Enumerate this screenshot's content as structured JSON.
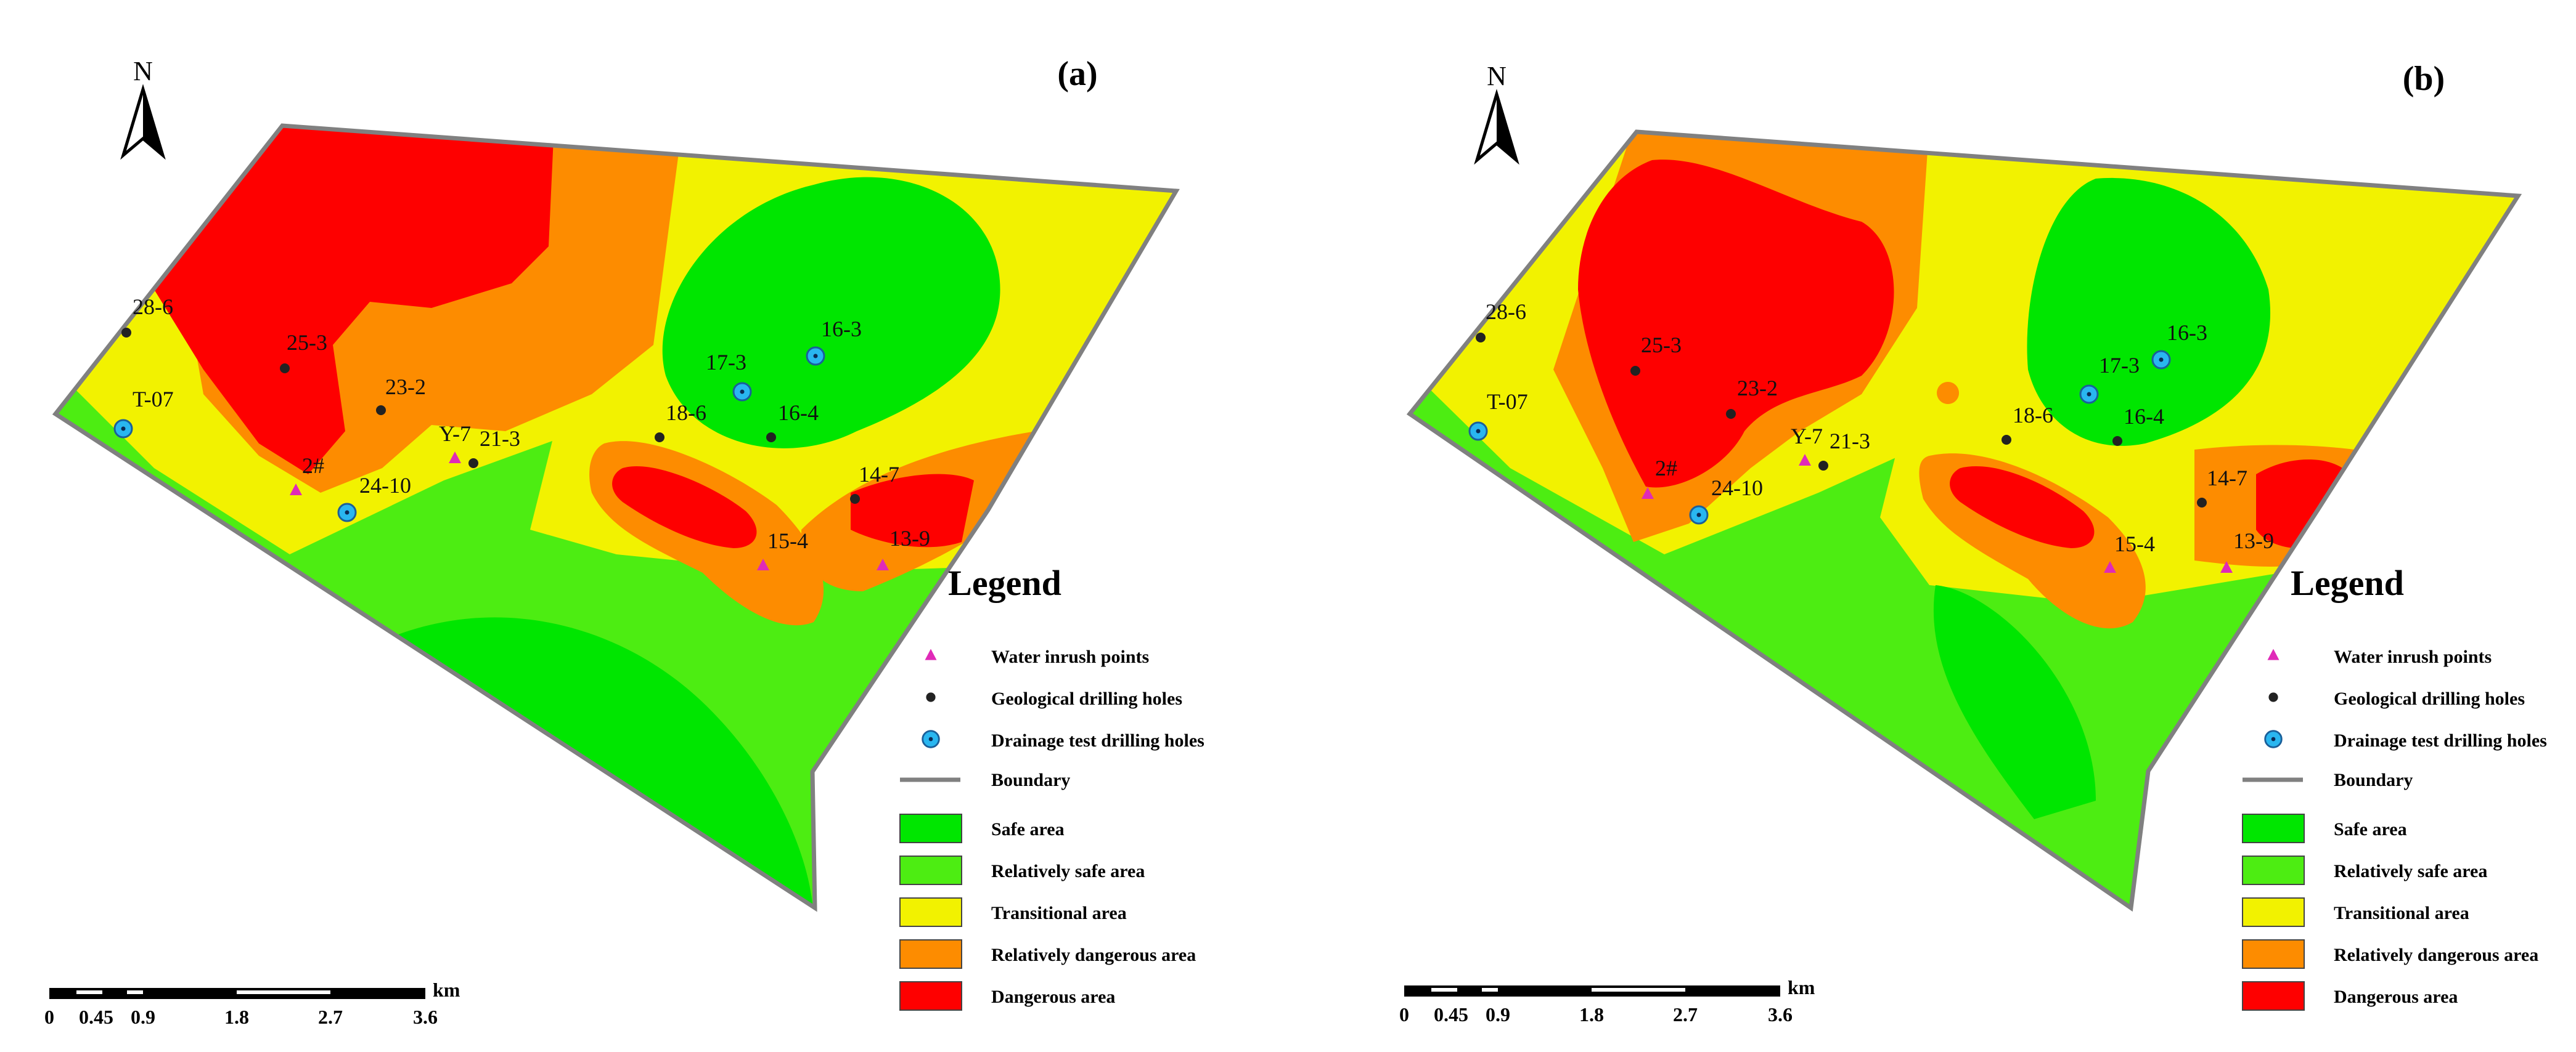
{
  "colors": {
    "safe": "#00e600",
    "relatively_safe": "#4ded12",
    "transitional": "#f2f200",
    "relatively_dangerous": "#fd8c00",
    "dangerous": "#fe0000",
    "water_inrush": "#e02ab8",
    "geological": "#222222",
    "drainage": "#29b6f0",
    "boundary": "#808080"
  },
  "north_label": "N",
  "panels": [
    {
      "label": "(a)",
      "points": [
        {
          "name": "28-6",
          "type": "geological"
        },
        {
          "name": "25-3",
          "type": "geological"
        },
        {
          "name": "23-2",
          "type": "geological"
        },
        {
          "name": "T-07",
          "type": "drainage"
        },
        {
          "name": "2#",
          "type": "water_inrush"
        },
        {
          "name": "24-10",
          "type": "drainage"
        },
        {
          "name": "Y-7",
          "type": "water_inrush"
        },
        {
          "name": "21-3",
          "type": "geological"
        },
        {
          "name": "18-6",
          "type": "geological"
        },
        {
          "name": "17-3",
          "type": "drainage"
        },
        {
          "name": "16-3",
          "type": "drainage"
        },
        {
          "name": "16-4",
          "type": "geological"
        },
        {
          "name": "14-7",
          "type": "geological"
        },
        {
          "name": "15-4",
          "type": "water_inrush"
        },
        {
          "name": "13-9",
          "type": "water_inrush"
        }
      ]
    },
    {
      "label": "(b)",
      "points": [
        {
          "name": "28-6",
          "type": "geological"
        },
        {
          "name": "25-3",
          "type": "geological"
        },
        {
          "name": "23-2",
          "type": "geological"
        },
        {
          "name": "T-07",
          "type": "drainage"
        },
        {
          "name": "2#",
          "type": "water_inrush"
        },
        {
          "name": "24-10",
          "type": "drainage"
        },
        {
          "name": "Y-7",
          "type": "water_inrush"
        },
        {
          "name": "21-3",
          "type": "geological"
        },
        {
          "name": "18-6",
          "type": "geological"
        },
        {
          "name": "17-3",
          "type": "drainage"
        },
        {
          "name": "16-3",
          "type": "drainage"
        },
        {
          "name": "16-4",
          "type": "geological"
        },
        {
          "name": "14-7",
          "type": "geological"
        },
        {
          "name": "15-4",
          "type": "water_inrush"
        },
        {
          "name": "13-9",
          "type": "water_inrush"
        }
      ]
    }
  ],
  "legend": {
    "title": "Legend",
    "symbols": [
      {
        "key": "water_inrush",
        "label": "Water inrush points"
      },
      {
        "key": "geological",
        "label": "Geological drilling holes"
      },
      {
        "key": "drainage",
        "label": "Drainage test drilling holes"
      },
      {
        "key": "boundary",
        "label": "Boundary"
      }
    ],
    "areas": [
      {
        "key": "safe",
        "label": "Safe area"
      },
      {
        "key": "relatively_safe",
        "label": "Relatively safe area"
      },
      {
        "key": "transitional",
        "label": "Transitional area"
      },
      {
        "key": "relatively_dangerous",
        "label": "Relatively dangerous area"
      },
      {
        "key": "dangerous",
        "label": "Dangerous area"
      }
    ]
  },
  "scale_bar": {
    "unit": "km",
    "ticks": [
      "0",
      "0.45",
      "0.9",
      "1.8",
      "2.7",
      "3.6"
    ]
  }
}
